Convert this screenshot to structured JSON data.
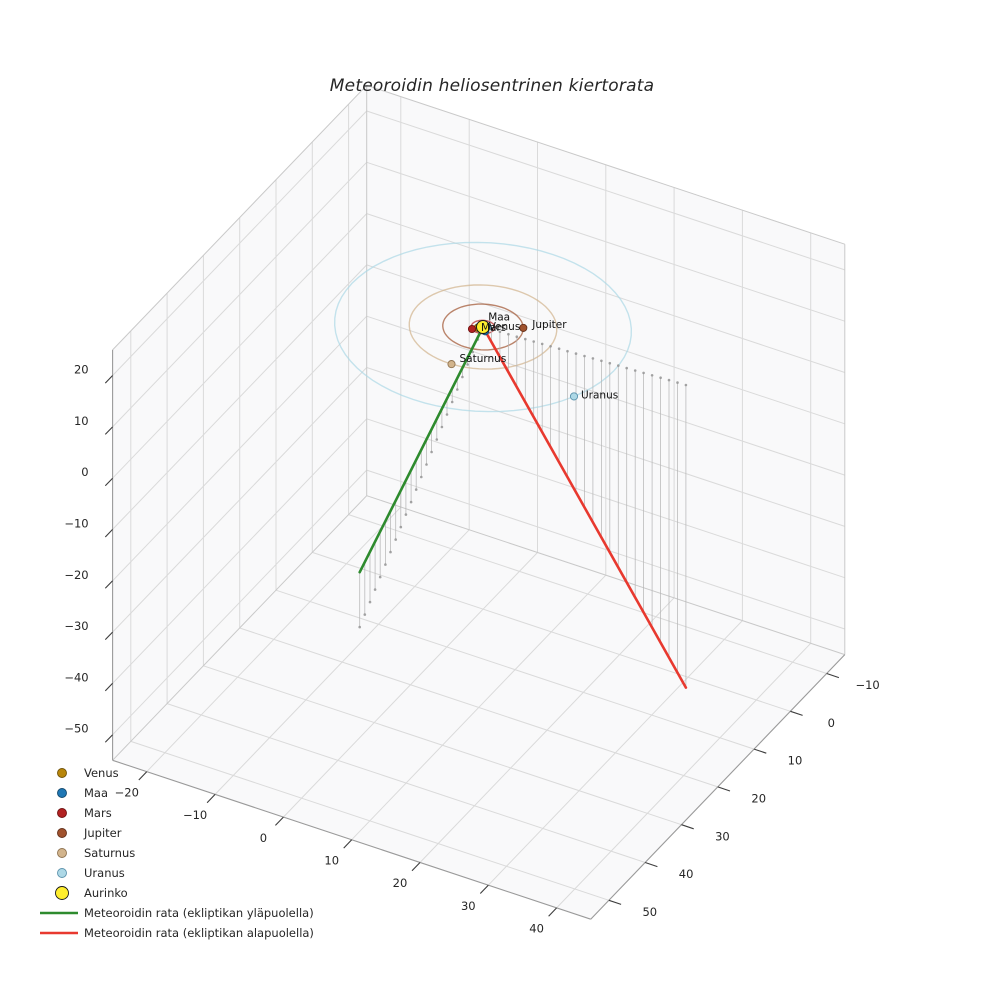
{
  "chart_data": {
    "type": "line",
    "projection": "3d",
    "title": "Meteoroidin heliosentrinen kiertorata",
    "xlim": [
      -25,
      45
    ],
    "ylim": [
      -15,
      55
    ],
    "zlim": [
      -55,
      25
    ],
    "xticks": [
      -20,
      -10,
      0,
      10,
      20,
      30,
      40
    ],
    "yticks": [
      -10,
      0,
      10,
      20,
      30,
      40,
      50
    ],
    "zticks": [
      -50,
      -40,
      -30,
      -20,
      -10,
      0,
      10,
      20
    ],
    "grid": true,
    "legend_position": "lower-left",
    "sun": {
      "name": "Aurinko",
      "x": 0,
      "y": 0,
      "z": 0,
      "color": "#ffee2e",
      "edge_color": "#1a1a1a",
      "marker_radius": 6.5
    },
    "planets": [
      {
        "name": "Venus",
        "orbit_radius_au": 0.72,
        "x": -0.51,
        "y": 0.51,
        "color": "#b8860b",
        "edge_color": "#705207",
        "label_offset": [
          11,
          -1
        ]
      },
      {
        "name": "Maa",
        "orbit_radius_au": 1.0,
        "x": 0.7,
        "y": 0.71,
        "color": "#1f77b4",
        "edge_color": "#12496e",
        "label_offset": [
          3,
          -14
        ]
      },
      {
        "name": "Mars",
        "orbit_radius_au": 1.52,
        "x": -1.01,
        "y": 1.14,
        "color": "#b22222",
        "edge_color": "#701111",
        "label_offset": [
          9,
          -1
        ]
      },
      {
        "name": "Jupiter",
        "orbit_radius_au": 5.2,
        "x": 4.56,
        "y": -2.51,
        "color": "#a0522d",
        "edge_color": "#63301a",
        "label_offset": [
          9,
          -3
        ]
      },
      {
        "name": "Saturnus",
        "orbit_radius_au": 9.54,
        "x": 0.46,
        "y": 9.53,
        "color": "#d2b48c",
        "edge_color": "#8f7350",
        "label_offset": [
          8,
          -5
        ]
      },
      {
        "name": "Uranus",
        "orbit_radius_au": 19.19,
        "x": 17.5,
        "y": 7.86,
        "color": "#add8e6",
        "edge_color": "#5d93ad",
        "label_offset": [
          7,
          -1
        ]
      }
    ],
    "trajectories": [
      {
        "name": "Meteoroidin rata (ekliptikan yläpuolella)",
        "color": "#2e8b2e",
        "start": [
          0,
          0,
          0
        ],
        "end": [
          18.3,
          68.4,
          10.7
        ]
      },
      {
        "name": "Meteoroidin rata (ekliptikan alapuolella)",
        "color": "#e8392f",
        "start": [
          0,
          0,
          0
        ],
        "end": [
          28.7,
          -1.9,
          -59.0
        ]
      }
    ],
    "stem_count": 24,
    "style": {
      "pane_fill": "#f9f9fa",
      "grid_color": "#dadada",
      "pane_edge_color": "#c9c9c9",
      "spine_color": "#9a9a9a",
      "tick_color": "#3c3c3c",
      "tick_label_color": "#262626",
      "stem_color": "#b5b5b5",
      "stem_dot_color": "#949494",
      "annotation_color": "#111111",
      "legend_text_color": "#262626"
    }
  }
}
